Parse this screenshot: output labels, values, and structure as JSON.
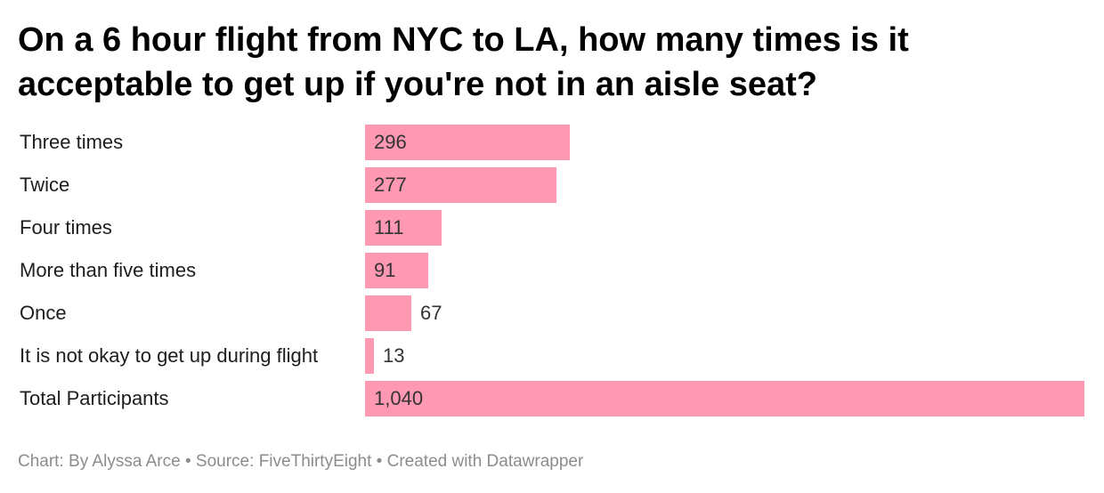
{
  "title": "On a 6 hour flight from NYC to LA, how many times is it acceptable to get up if you're not in an aisle seat?",
  "footer": {
    "credit_label": "Chart:",
    "credit": "By Alyssa Arce",
    "separator": "•",
    "source_label": "Source:",
    "source": "FiveThirtyEight",
    "created_with": "Created with Datawrapper"
  },
  "colors": {
    "bar": "#ff98b3"
  },
  "chart_data": {
    "type": "bar",
    "orientation": "horizontal",
    "categories": [
      "Three times",
      "Twice",
      "Four times",
      "More than five times",
      "Once",
      "It is not okay to get up during flight",
      "Total Participants"
    ],
    "values": [
      296,
      277,
      111,
      91,
      67,
      13,
      1040
    ],
    "value_labels": [
      "296",
      "277",
      "111",
      "91",
      "67",
      "13",
      "1,040"
    ],
    "xlim": [
      0,
      1040
    ],
    "grid": false,
    "legend": "none"
  }
}
